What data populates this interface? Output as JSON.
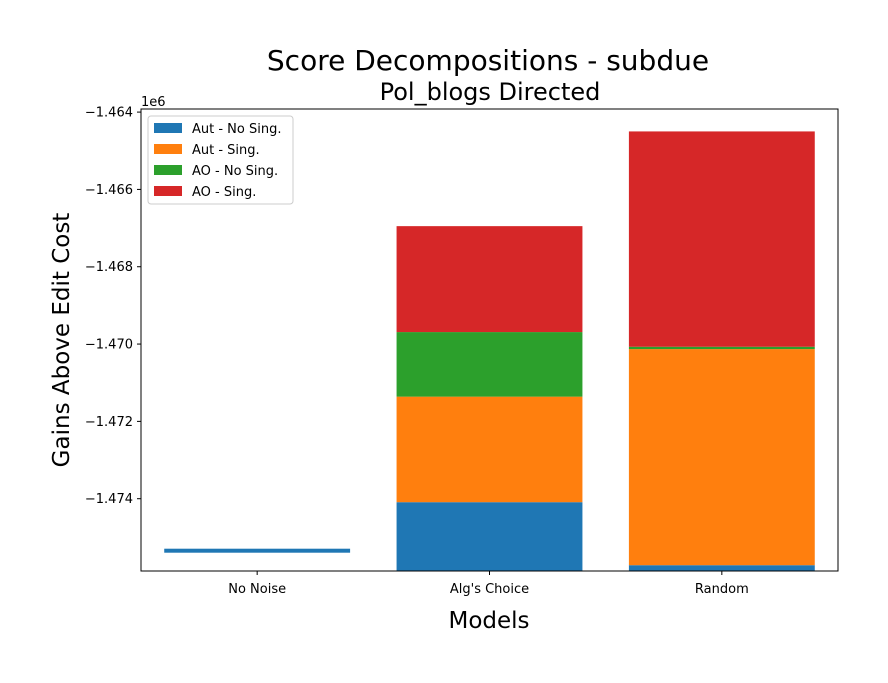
{
  "chart_data": {
    "type": "bar",
    "stacked": true,
    "title": "Score Decompositions - subdue",
    "subtitle": "Pol_blogs Directed",
    "xlabel": "Models",
    "ylabel": "Gains Above Edit Cost",
    "offset_label": "1e6",
    "categories": [
      "No Noise",
      "Alg's Choice",
      "Random"
    ],
    "ylim": [
      -1.47587,
      -1.46392
    ],
    "yticks": [
      -1.464,
      -1.466,
      -1.468,
      -1.47,
      -1.472,
      -1.474
    ],
    "ytick_labels": [
      "−1.464",
      "−1.466",
      "−1.468",
      "−1.470",
      "−1.472",
      "−1.474"
    ],
    "legend_position": "upper-left",
    "series": [
      {
        "name": "Aut - No Sing.",
        "color": "#1f77b4",
        "bottoms": [
          -1.47539,
          -1.47587,
          -1.47587
        ],
        "tops": [
          -1.4753,
          -1.47409,
          -1.47572
        ]
      },
      {
        "name": "Aut - Sing.",
        "color": "#ff7f0e",
        "bottoms": [
          -1.4753,
          -1.47409,
          -1.47572
        ],
        "tops": [
          -1.4753,
          -1.47136,
          -1.47013
        ]
      },
      {
        "name": "AO - No Sing.",
        "color": "#2ca02c",
        "bottoms": [
          -1.4753,
          -1.47136,
          -1.47013
        ],
        "tops": [
          -1.4753,
          -1.46969,
          -1.47007
        ]
      },
      {
        "name": "AO - Sing.",
        "color": "#d62728",
        "bottoms": [
          -1.4753,
          -1.46969,
          -1.47007
        ],
        "tops": [
          -1.4753,
          -1.46695,
          -1.4645
        ]
      }
    ]
  }
}
